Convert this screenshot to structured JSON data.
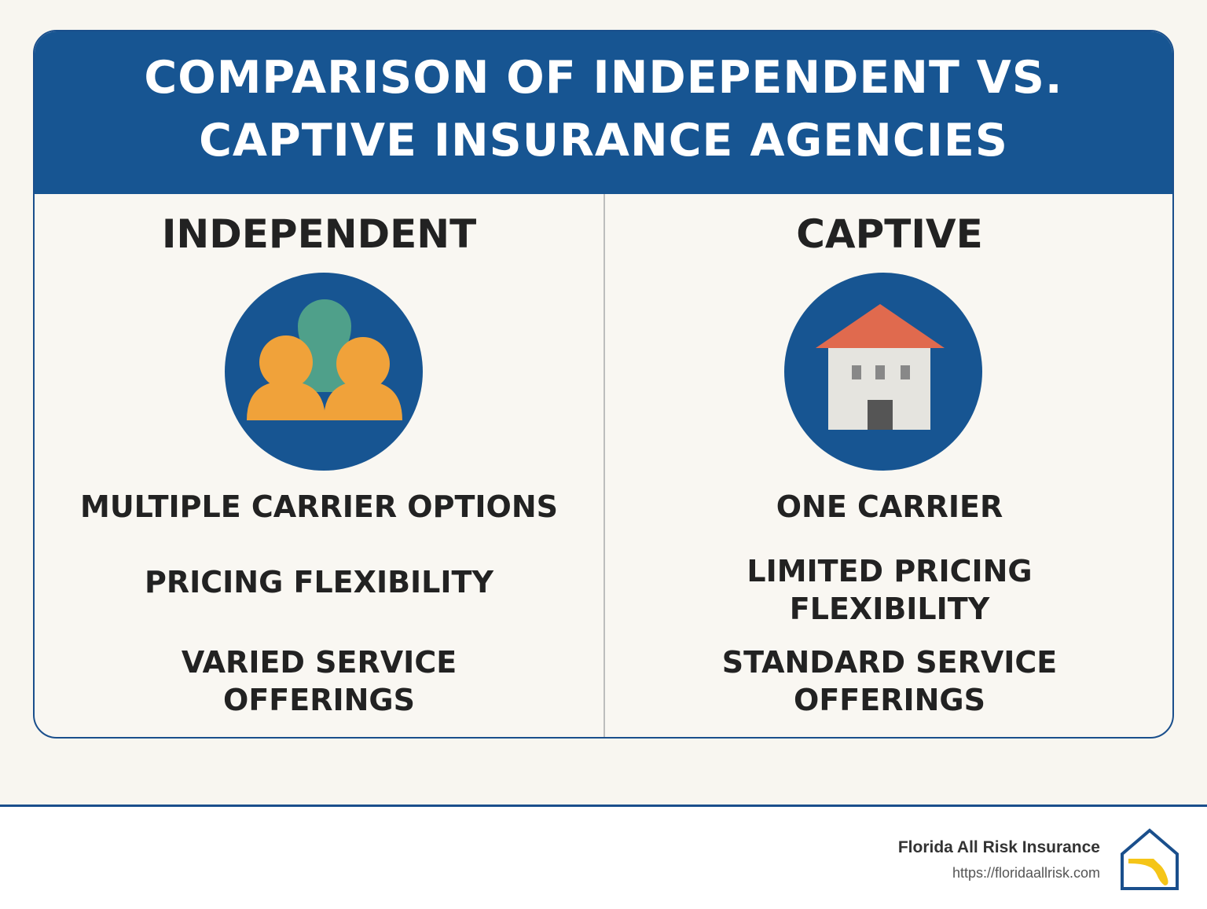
{
  "header": {
    "title_lines": [
      "COMPARISON OF INDEPENDENT VS.",
      "CAPTIVE INSURANCE AGENCIES"
    ]
  },
  "columns": [
    {
      "heading": "INDEPENDENT",
      "items": [
        "MULTIPLE CARRIER OPTIONS",
        "PRICING FLEXIBILITY",
        "VARIED SERVICE OFFERINGS"
      ]
    },
    {
      "heading": "CAPTIVE",
      "items": [
        "ONE CARRIER",
        "LIMITED PRICING FLEXIBILITY",
        "STANDARD SERVICE OFFERINGS"
      ]
    }
  ],
  "footer": {
    "brand": "Florida All Risk Insurance",
    "url": "https://floridaallrisk.com"
  }
}
